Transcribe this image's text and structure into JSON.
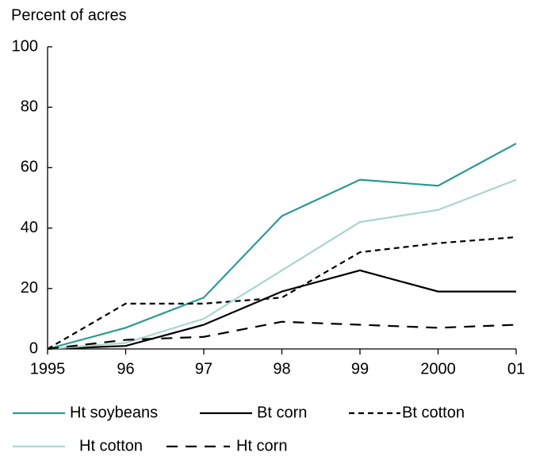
{
  "chart_data": {
    "type": "line",
    "y_axis_label": "Percent of acres",
    "categories": [
      "1995",
      "96",
      "97",
      "98",
      "99",
      "2000",
      "01"
    ],
    "series": [
      {
        "name": "Ht soybeans",
        "color": "#2a9a92",
        "dash": "solid",
        "values": [
          0,
          7,
          17,
          44,
          56,
          54,
          68
        ]
      },
      {
        "name": "Bt corn",
        "color": "#000000",
        "dash": "solid",
        "values": [
          0,
          1,
          8,
          19,
          26,
          19,
          19
        ]
      },
      {
        "name": "Bt cotton",
        "color": "#000000",
        "dash": "short",
        "values": [
          0,
          15,
          15,
          17,
          32,
          35,
          37
        ]
      },
      {
        "name": "Ht cotton",
        "color": "#a9d6cd",
        "dash": "solid",
        "values": [
          0,
          2,
          10,
          26,
          42,
          46,
          56
        ]
      },
      {
        "name": "Ht corn",
        "color": "#000000",
        "dash": "long",
        "values": [
          0,
          3,
          4,
          9,
          8,
          7,
          8
        ]
      }
    ],
    "ylim": [
      0,
      100
    ],
    "yticks": [
      0,
      20,
      40,
      60,
      80,
      100
    ],
    "grid": false
  }
}
